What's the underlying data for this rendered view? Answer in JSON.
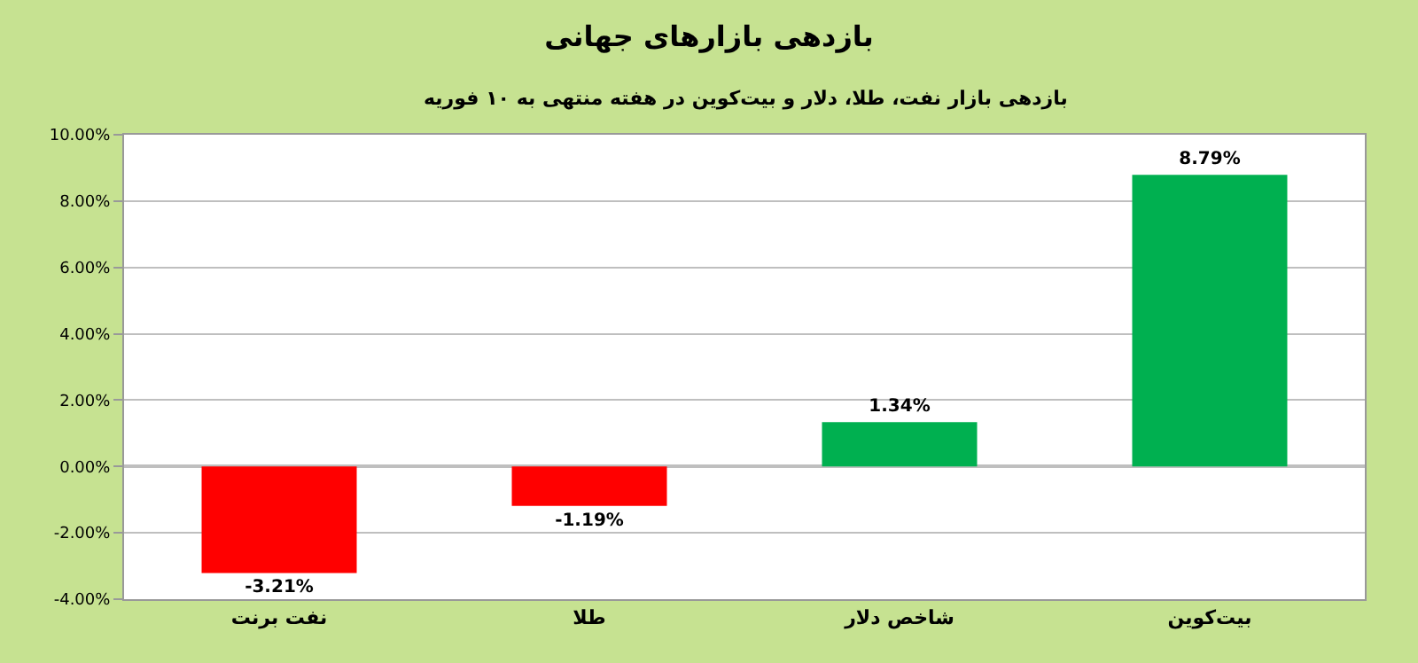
{
  "chart_data": {
    "type": "bar",
    "title": "بازدهی بازارهای جهانی",
    "subtitle": "بازدهی بازار نفت، طلا، دلار و بیت‌کوین در هفته منتهی به ۱۰ فوریه",
    "categories": [
      "نفت برنت",
      "طلا",
      "شاخص دلار",
      "بیت‌کوین"
    ],
    "values": [
      -3.21,
      -1.19,
      1.34,
      8.79
    ],
    "colors": [
      "#ff0000",
      "#ff0000",
      "#00b050",
      "#00b050"
    ],
    "value_labels": [
      "-3.21%",
      "-1.19%",
      "1.34%",
      "8.79%"
    ],
    "ylim": [
      -4,
      10
    ],
    "yticks": [
      {
        "value": -4,
        "label": "-4.00%"
      },
      {
        "value": -2,
        "label": "-2.00%"
      },
      {
        "value": 0,
        "label": "0.00%"
      },
      {
        "value": 2,
        "label": "2.00%"
      },
      {
        "value": 4,
        "label": "4.00%"
      },
      {
        "value": 6,
        "label": "6.00%"
      },
      {
        "value": 8,
        "label": "8.00%"
      },
      {
        "value": 10,
        "label": "10.00%"
      }
    ],
    "grid": "y"
  }
}
